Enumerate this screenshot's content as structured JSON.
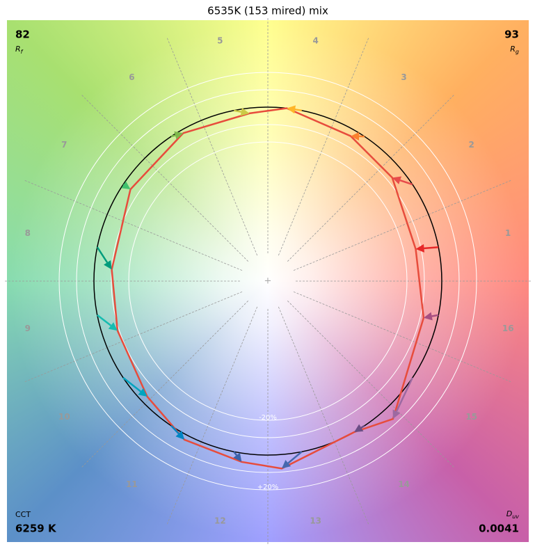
{
  "chart_data": {
    "type": "vector",
    "title": "6535K (153 mired) mix",
    "categories": [
      "1",
      "2",
      "3",
      "4",
      "5",
      "6",
      "7",
      "8",
      "9",
      "10",
      "11",
      "12",
      "13",
      "14",
      "15",
      "16"
    ],
    "chroma_shift": [
      -13,
      -7,
      -4,
      0,
      -3,
      -2,
      -5,
      -10,
      -9,
      -4,
      3,
      5,
      8,
      0,
      7,
      -8
    ],
    "hue_shift": [
      1,
      6,
      4,
      5,
      -5,
      -4,
      0,
      7,
      7,
      10,
      6,
      3,
      -7,
      -4,
      -14,
      -2
    ],
    "colors": [
      "#e62828",
      "#e74b4b",
      "#fb812e",
      "#ffb529",
      "#cbca46",
      "#7eb94c",
      "#41c06d",
      "#009c7c",
      "#16bcb0",
      "#00a4bf",
      "#0085c3",
      "#3b62aa",
      "#4568ae",
      "#6a4e85",
      "#9d69a1",
      "#a74f81"
    ],
    "polygon_color": "#e74c3c",
    "rlim": [
      -100,
      20
    ],
    "rgrid": [
      -20,
      -10,
      10,
      20
    ],
    "rticks": [
      {
        "value": -20,
        "label": "-20%"
      },
      {
        "value": 20,
        "label": "+20%"
      }
    ],
    "rf": {
      "value": "82",
      "label": "R",
      "sub": "f"
    },
    "rg": {
      "value": "93",
      "label": "R",
      "sub": "g"
    },
    "cct": {
      "label": "CCT",
      "value": "6259 K"
    },
    "duv": {
      "label": "D",
      "sub": "uv",
      "value": "0.0041"
    }
  }
}
